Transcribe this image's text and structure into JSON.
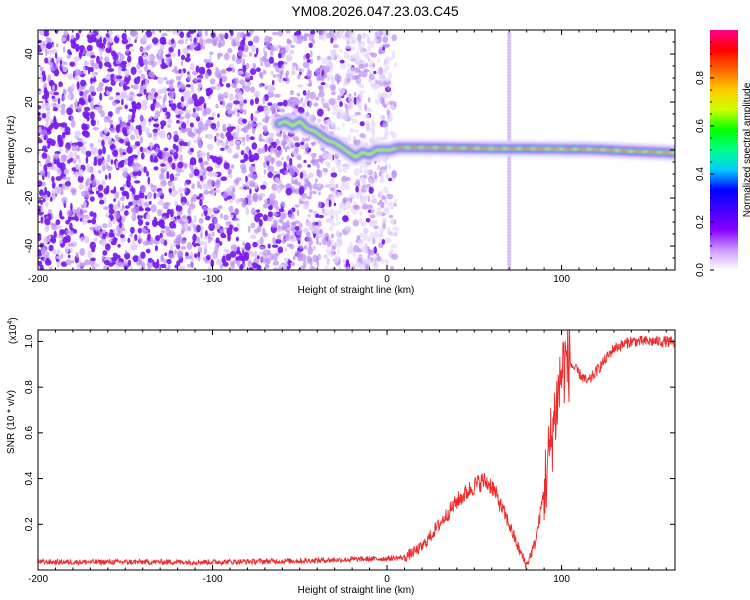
{
  "title": "YM08.2026.047.23.03.C45",
  "chart_data": [
    {
      "type": "heatmap",
      "title": "YM08.2026.047.23.03.C45",
      "xlabel": "Height of straight line (km)",
      "ylabel": "Frequency (Hz)",
      "xlim": [
        -200,
        165
      ],
      "ylim": [
        -50,
        50
      ],
      "x_ticks": [
        "-200",
        "-100",
        "0",
        "100"
      ],
      "y_ticks": [
        "40",
        "20",
        "0",
        "-20",
        "-40"
      ],
      "colorbar": {
        "label": "Normalized spectral amplitude",
        "range": [
          0,
          1
        ],
        "ticks": [
          "0.0",
          "0.2",
          "0.4",
          "0.6",
          "0.8"
        ],
        "colormap": [
          "#ffffff",
          "#cc99ff",
          "#8800ff",
          "#4400ff",
          "#0000ff",
          "#00ccff",
          "#00ff88",
          "#00ff00",
          "#ccff00",
          "#ffcc00",
          "#ff6600",
          "#ff0000",
          "#ff0088"
        ]
      },
      "ridge": {
        "x": [
          -62,
          -58,
          -54,
          -50,
          -46,
          -42,
          -38,
          -34,
          -30,
          -26,
          -22,
          -18,
          -14,
          -10,
          -6,
          -2,
          2,
          6,
          10,
          20,
          40,
          60,
          80,
          100,
          120,
          140,
          165
        ],
        "y": [
          11,
          12,
          10,
          12,
          9,
          8,
          6,
          4,
          3,
          1,
          -1,
          -3,
          -1,
          -2,
          0,
          0,
          0,
          1,
          1,
          1,
          0.8,
          0.6,
          0.5,
          0.4,
          0.2,
          -0.5,
          -1.2
        ]
      },
      "vertical_line_x": 70,
      "noise_x_range": [
        -200,
        5
      ]
    },
    {
      "type": "line",
      "xlabel": "Height of straight line (km)",
      "ylabel": "SNR (10 * v/v)",
      "y_multiplier": "(x10^4)",
      "xlim": [
        -200,
        165
      ],
      "ylim": [
        0,
        1.05
      ],
      "x_ticks": [
        "-200",
        "-100",
        "0",
        "100"
      ],
      "y_ticks": [
        "1.0",
        "0.8",
        "0.6",
        "0.4",
        "0.2"
      ],
      "series": [
        {
          "color": "#ee2a2a",
          "x": [
            -200,
            -150,
            -100,
            -50,
            0,
            10,
            20,
            30,
            40,
            50,
            55,
            60,
            70,
            75,
            80,
            85,
            90,
            95,
            100,
            103,
            110,
            115,
            120,
            125,
            130,
            140,
            150,
            160,
            165
          ],
          "y": [
            0.035,
            0.035,
            0.035,
            0.04,
            0.05,
            0.055,
            0.1,
            0.2,
            0.3,
            0.37,
            0.39,
            0.37,
            0.2,
            0.1,
            0.02,
            0.12,
            0.35,
            0.62,
            0.87,
            0.92,
            0.86,
            0.82,
            0.87,
            0.92,
            0.97,
            1.0,
            1.0,
            1.0,
            0.99
          ]
        }
      ]
    }
  ]
}
